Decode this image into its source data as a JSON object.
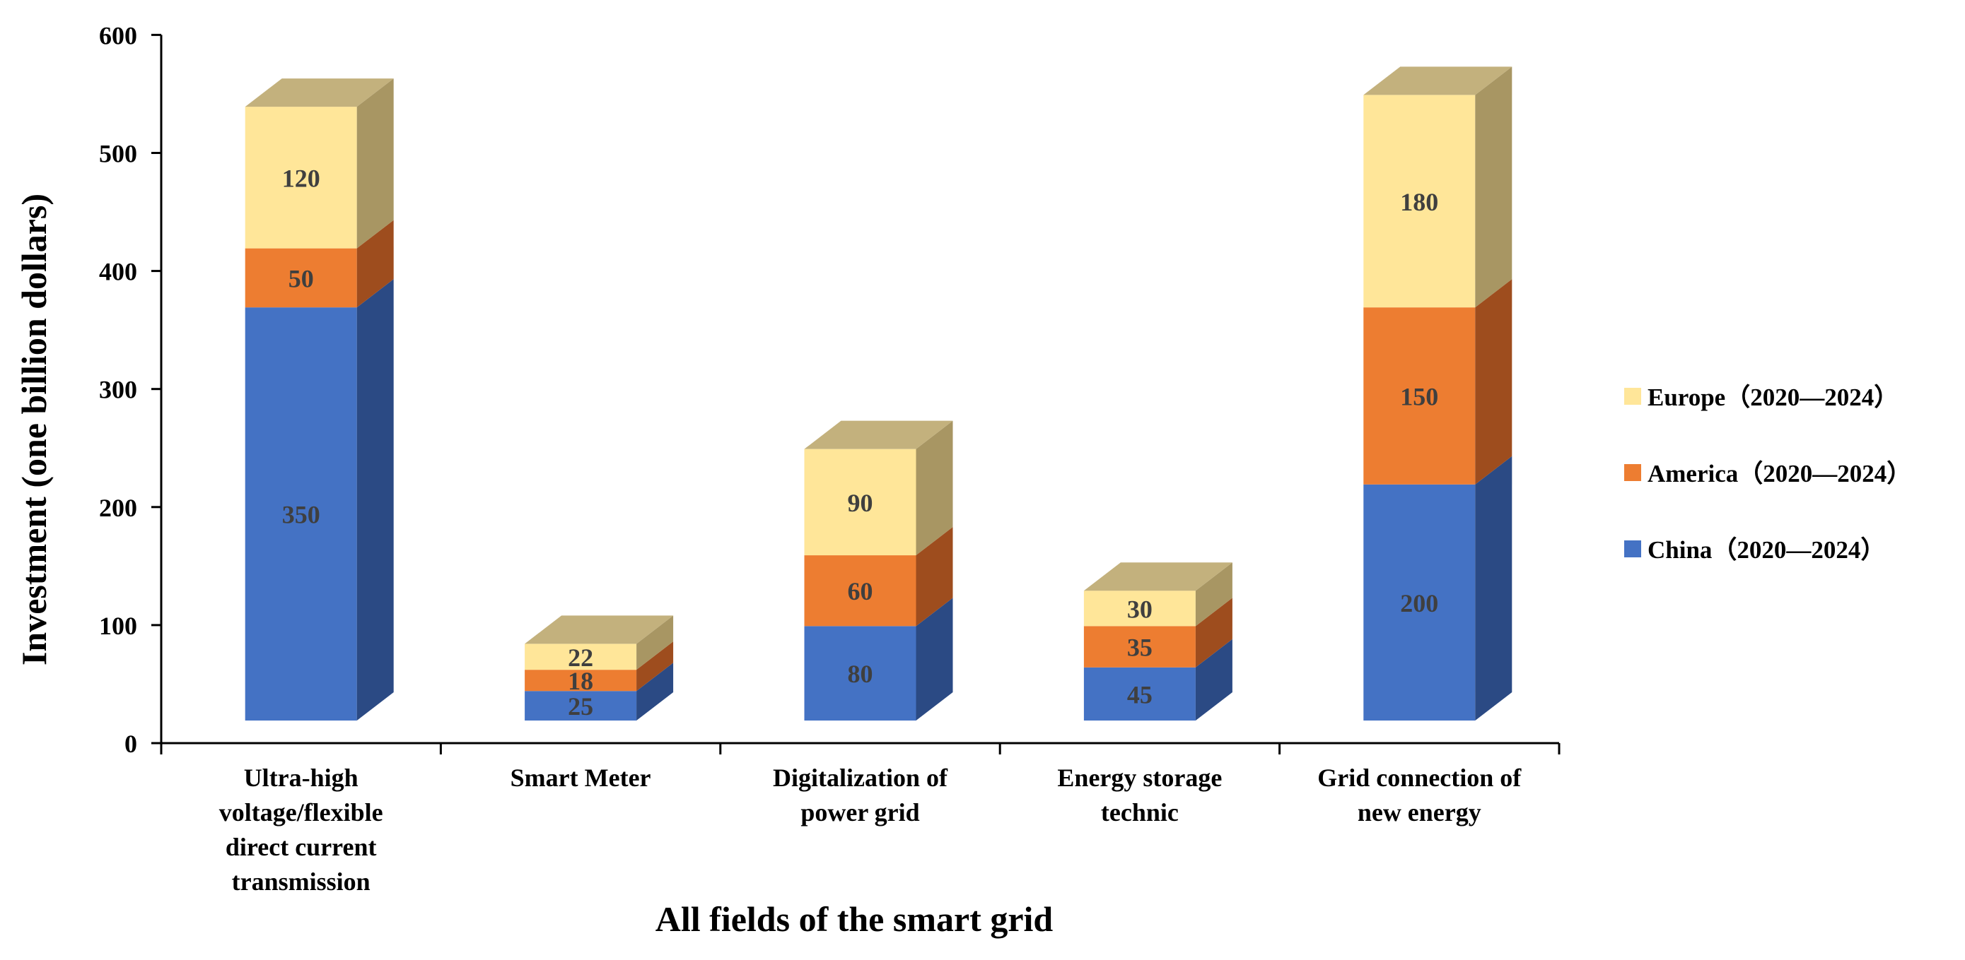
{
  "chart_data": {
    "type": "bar",
    "stacked": true,
    "style": "3d",
    "title": "",
    "xlabel": "All fields of the smart grid",
    "ylabel": "Investment (one billion dollars)",
    "ylim": [
      0,
      600
    ],
    "yticks": [
      0,
      100,
      200,
      300,
      400,
      500,
      600
    ],
    "categories": [
      [
        "Ultra-high",
        "voltage/flexible",
        "direct current",
        "transmission"
      ],
      [
        "Smart Meter"
      ],
      [
        "Digitalization of",
        "power grid"
      ],
      [
        "Energy storage",
        "technic"
      ],
      [
        "Grid connection of",
        "new energy"
      ]
    ],
    "series": [
      {
        "name": "China（2020—2024）",
        "color": "#4472C4",
        "side_color": "#2B4A84",
        "top_color": "#7B93C6",
        "values": [
          350,
          25,
          80,
          45,
          200
        ]
      },
      {
        "name": "America（2020—2024）",
        "color": "#ED7D31",
        "side_color": "#9E4D1E",
        "top_color": "#D08B58",
        "values": [
          50,
          18,
          60,
          35,
          150
        ]
      },
      {
        "name": "Europe（2020—2024）",
        "color": "#FFE699",
        "side_color": "#A89663",
        "top_color": "#C3B17D",
        "values": [
          120,
          22,
          90,
          30,
          180
        ]
      }
    ],
    "legend": {
      "position": "right",
      "order": [
        "Europe（2020—2024）",
        "America（2020—2024）",
        "China（2020—2024）"
      ]
    },
    "label_color": "#3F3F3F",
    "axis_color": "#000000",
    "grid": false
  }
}
